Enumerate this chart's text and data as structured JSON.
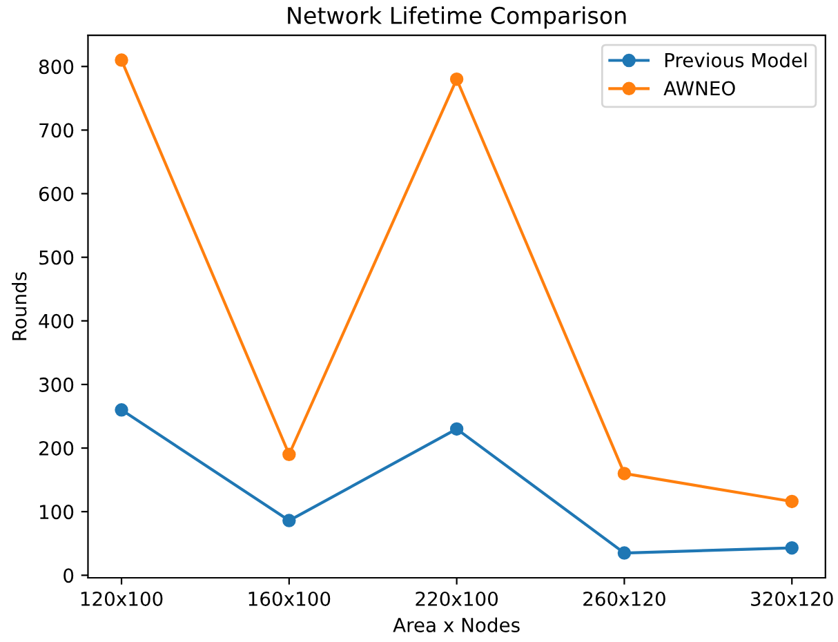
{
  "chart_data": {
    "type": "line",
    "title": "Network Lifetime Comparison",
    "xlabel": "Area x Nodes",
    "ylabel": "Rounds",
    "categories": [
      "120x100",
      "160x100",
      "220x100",
      "260x120",
      "320x120"
    ],
    "series": [
      {
        "name": "Previous Model",
        "color": "#1f77b4",
        "values": [
          260,
          86,
          230,
          35,
          43
        ]
      },
      {
        "name": "AWNEO",
        "color": "#ff7f0e",
        "values": [
          810,
          190,
          780,
          160,
          116
        ]
      }
    ],
    "ylim": [
      -4,
      849
    ],
    "yticks": [
      0,
      100,
      200,
      300,
      400,
      500,
      600,
      700,
      800
    ],
    "marker": "circle",
    "legend": "top right",
    "grid": false
  }
}
